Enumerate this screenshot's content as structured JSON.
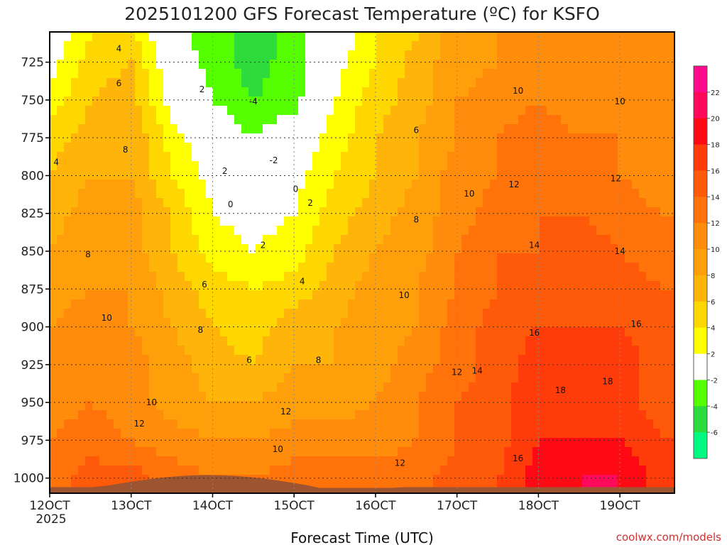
{
  "chart_data": {
    "type": "heatmap",
    "title": "2025101200 GFS Forecast Temperature (ºC) for KSFO",
    "xlabel": "Forecast Time (UTC)",
    "ylabel": "",
    "x_tick_labels": [
      "12OCT",
      "13OCT",
      "14OCT",
      "15OCT",
      "16OCT",
      "17OCT",
      "18OCT",
      "19OCT"
    ],
    "x_first_tick_sublabel": "2025",
    "x_range_days": [
      12.0,
      19.67
    ],
    "y_tick_labels": [
      "725",
      "750",
      "775",
      "800",
      "825",
      "850",
      "875",
      "900",
      "925",
      "950",
      "975",
      "1000"
    ],
    "y_range_hpa": [
      1010,
      705
    ],
    "units": "°C",
    "contour_interval": 2,
    "colorbar": {
      "labels": [
        "22",
        "20",
        "18",
        "16",
        "14",
        "12",
        "10",
        "8",
        "6",
        "4",
        "2",
        "-2",
        "-4",
        "-6"
      ],
      "colors": [
        "#ff0a8c",
        "#ff0a5a",
        "#ff0a14",
        "#ff3c0a",
        "#ff5a0a",
        "#ff730a",
        "#ff8c0a",
        "#ffa00a",
        "#ffb40a",
        "#ffd700",
        "#ffff00",
        "#ffffff",
        "#55ff00",
        "#2ddc3c",
        "#00fa82"
      ]
    },
    "x_days": [
      12.0,
      12.5,
      13.0,
      13.5,
      14.0,
      14.5,
      15.0,
      15.5,
      16.0,
      16.5,
      17.0,
      17.5,
      18.0,
      18.5,
      19.0,
      19.5
    ],
    "levels_hpa": [
      1000,
      975,
      950,
      925,
      900,
      875,
      850,
      825,
      800,
      775,
      750,
      725,
      710
    ],
    "series": [
      {
        "name": "1000 hPa",
        "values": [
          13,
          15,
          15,
          13,
          12,
          12,
          13,
          13,
          13,
          13,
          15,
          16,
          19,
          20,
          20,
          17
        ]
      },
      {
        "name": "975 hPa",
        "values": [
          12,
          13,
          12,
          11,
          10,
          10,
          11,
          11,
          11,
          12,
          14,
          15,
          18,
          18,
          18,
          16
        ]
      },
      {
        "name": "950 hPa",
        "values": [
          11,
          12,
          11,
          9,
          8,
          8,
          9,
          9,
          10,
          12,
          14,
          15,
          18,
          17,
          17,
          15
        ]
      },
      {
        "name": "925 hPa",
        "values": [
          11,
          12,
          11,
          9,
          7,
          6,
          8,
          8,
          9,
          11,
          13,
          15,
          17,
          17,
          17,
          15
        ]
      },
      {
        "name": "900 hPa",
        "values": [
          10,
          11,
          10,
          8,
          6,
          5,
          7,
          8,
          9,
          10,
          13,
          15,
          16,
          16,
          16,
          15
        ]
      },
      {
        "name": "875 hPa",
        "values": [
          9,
          10,
          10,
          7,
          5,
          4,
          5,
          7,
          9,
          10,
          12,
          14,
          15,
          15,
          15,
          14
        ]
      },
      {
        "name": "850 hPa",
        "values": [
          8,
          10,
          9,
          6,
          3,
          2,
          3,
          6,
          8,
          9,
          12,
          14,
          14,
          15,
          14,
          13
        ]
      },
      {
        "name": "825 hPa",
        "values": [
          7,
          9,
          9,
          6,
          2,
          1,
          2,
          5,
          7,
          9,
          11,
          13,
          14,
          14,
          13,
          12
        ]
      },
      {
        "name": "800 hPa",
        "values": [
          6,
          8,
          8,
          4,
          1,
          0,
          1,
          4,
          6,
          8,
          11,
          12,
          13,
          13,
          12,
          11
        ]
      },
      {
        "name": "775 hPa",
        "values": [
          5,
          7,
          8,
          3,
          0,
          -2,
          0,
          3,
          6,
          8,
          10,
          12,
          13,
          12,
          12,
          11
        ]
      },
      {
        "name": "750 hPa",
        "values": [
          3,
          6,
          7,
          1,
          -2,
          -4,
          -3,
          2,
          5,
          7,
          10,
          11,
          12,
          11,
          11,
          10
        ]
      },
      {
        "name": "725 hPa",
        "values": [
          1,
          5,
          6,
          0,
          -3,
          -5,
          -3,
          1,
          4,
          7,
          9,
          10,
          11,
          11,
          10,
          10
        ]
      },
      {
        "name": "710 hPa",
        "values": [
          0,
          4,
          5,
          -1,
          -3,
          -5,
          -3,
          0,
          4,
          6,
          9,
          10,
          11,
          10,
          10,
          10
        ]
      }
    ],
    "contour_labels": [
      {
        "text": "4",
        "x": 12.85,
        "p": 716
      },
      {
        "text": "6",
        "x": 12.85,
        "p": 739
      },
      {
        "text": "8",
        "x": 12.93,
        "p": 783
      },
      {
        "text": "8",
        "x": 12.47,
        "p": 852
      },
      {
        "text": "10",
        "x": 12.7,
        "p": 894
      },
      {
        "text": "4",
        "x": 12.08,
        "p": 791
      },
      {
        "text": "2",
        "x": 13.87,
        "p": 743
      },
      {
        "text": "2",
        "x": 14.15,
        "p": 797
      },
      {
        "text": "0",
        "x": 14.22,
        "p": 819
      },
      {
        "text": "-4",
        "x": 14.5,
        "p": 751
      },
      {
        "text": "-2",
        "x": 14.75,
        "p": 790
      },
      {
        "text": "0",
        "x": 15.02,
        "p": 809
      },
      {
        "text": "2",
        "x": 15.2,
        "p": 818
      },
      {
        "text": "2",
        "x": 14.62,
        "p": 846
      },
      {
        "text": "4",
        "x": 15.1,
        "p": 870
      },
      {
        "text": "6",
        "x": 13.9,
        "p": 872
      },
      {
        "text": "8",
        "x": 13.85,
        "p": 902
      },
      {
        "text": "6",
        "x": 14.45,
        "p": 922
      },
      {
        "text": "8",
        "x": 15.3,
        "p": 922
      },
      {
        "text": "10",
        "x": 13.25,
        "p": 950
      },
      {
        "text": "12",
        "x": 13.1,
        "p": 964
      },
      {
        "text": "10",
        "x": 14.8,
        "p": 981
      },
      {
        "text": "12",
        "x": 14.9,
        "p": 956
      },
      {
        "text": "12",
        "x": 16.3,
        "p": 990
      },
      {
        "text": "10",
        "x": 16.35,
        "p": 879
      },
      {
        "text": "8",
        "x": 16.5,
        "p": 829
      },
      {
        "text": "6",
        "x": 16.5,
        "p": 770
      },
      {
        "text": "10",
        "x": 17.15,
        "p": 812
      },
      {
        "text": "12",
        "x": 17.7,
        "p": 806
      },
      {
        "text": "10",
        "x": 17.75,
        "p": 744
      },
      {
        "text": "10",
        "x": 19.0,
        "p": 751
      },
      {
        "text": "12",
        "x": 18.95,
        "p": 802
      },
      {
        "text": "14",
        "x": 17.95,
        "p": 846
      },
      {
        "text": "14",
        "x": 19.0,
        "p": 850
      },
      {
        "text": "16",
        "x": 17.95,
        "p": 904
      },
      {
        "text": "16",
        "x": 19.2,
        "p": 898
      },
      {
        "text": "12",
        "x": 17.0,
        "p": 930
      },
      {
        "text": "14",
        "x": 17.25,
        "p": 929
      },
      {
        "text": "18",
        "x": 18.27,
        "p": 942
      },
      {
        "text": "18",
        "x": 18.85,
        "p": 936
      },
      {
        "text": "16",
        "x": 17.75,
        "p": 987
      }
    ]
  },
  "footer": {
    "credit": "coolwx.com/models"
  }
}
